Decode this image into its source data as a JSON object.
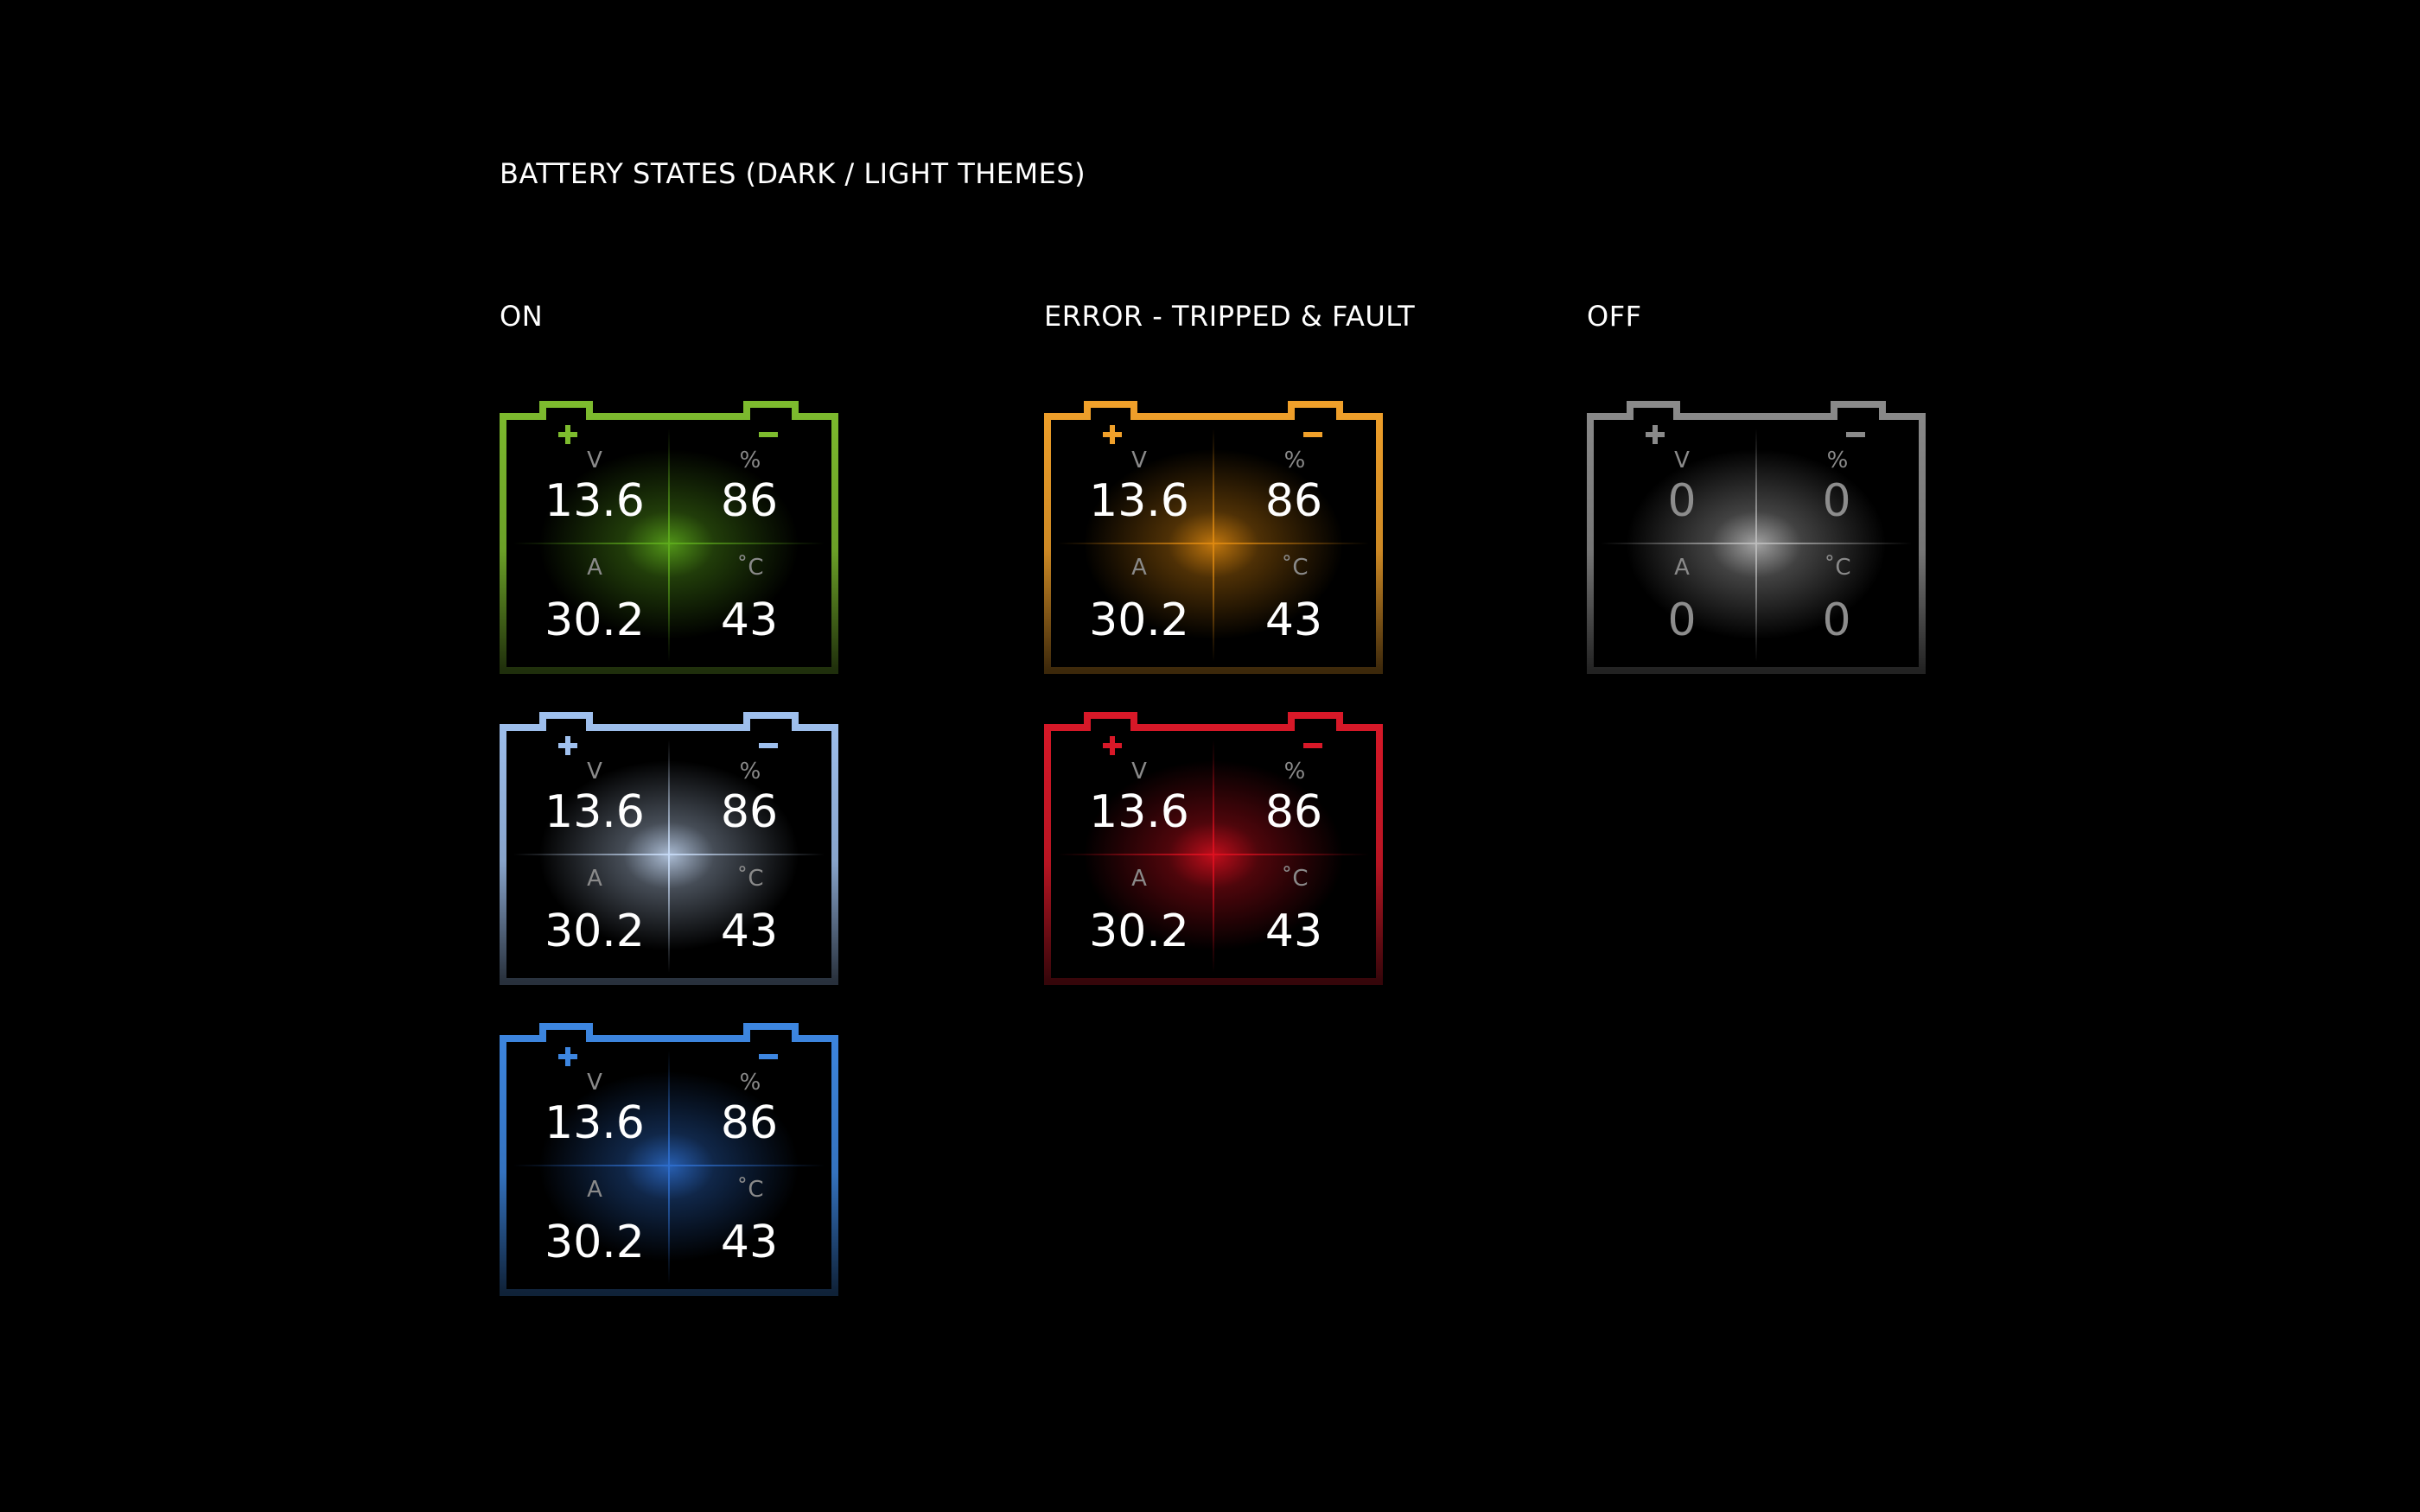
{
  "title": "BATTERY STATES (DARK / LIGHT THEMES)",
  "sections": [
    {
      "heading": "ON",
      "batteries": [
        {
          "color": "#7dbb2e",
          "glow": "#5fae1c",
          "voltage": "13.6",
          "percent": "86",
          "current": "30.2",
          "temperature": "43"
        },
        {
          "color": "#9fc0ee",
          "glow": "#c8dcf8",
          "voltage": "13.6",
          "percent": "86",
          "current": "30.2",
          "temperature": "43"
        },
        {
          "color": "#3d86e0",
          "glow": "#2e6fd0",
          "voltage": "13.6",
          "percent": "86",
          "current": "30.2",
          "temperature": "43"
        }
      ]
    },
    {
      "heading": "ERROR - TRIPPED & FAULT",
      "batteries": [
        {
          "color": "#f0a02a",
          "glow": "#e08a10",
          "voltage": "13.6",
          "percent": "86",
          "current": "30.2",
          "temperature": "43"
        },
        {
          "color": "#d81828",
          "glow": "#e01020",
          "voltage": "13.6",
          "percent": "86",
          "current": "30.2",
          "temperature": "43"
        }
      ]
    },
    {
      "heading": "OFF",
      "batteries": [
        {
          "color": "#8a8a8a",
          "glow": "#bdbdbd",
          "voltage": "0",
          "percent": "0",
          "current": "0",
          "temperature": "0"
        }
      ]
    }
  ],
  "units": {
    "voltage": "V",
    "percent": "%",
    "current": "A",
    "temperature": "˚C"
  },
  "icons": {
    "positive": "plus-terminal-icon",
    "negative": "minus-terminal-icon"
  }
}
